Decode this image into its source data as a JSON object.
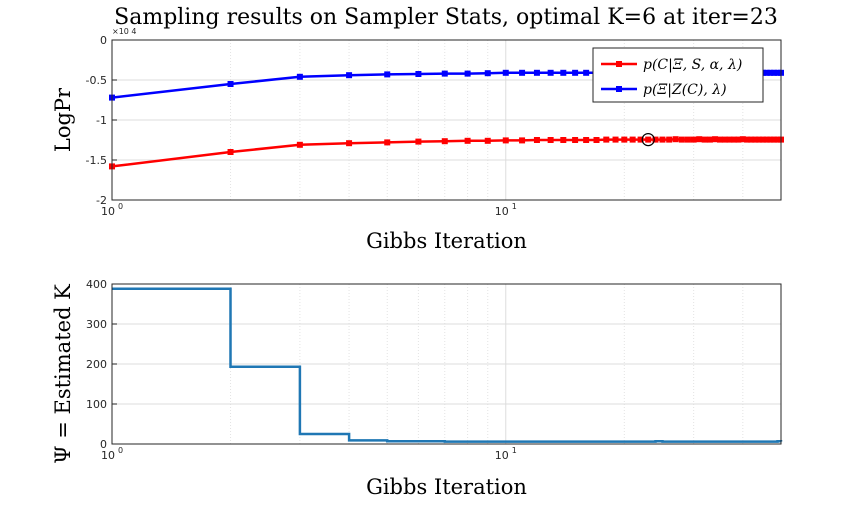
{
  "figure": {
    "title": "Sampling results on Sampler Stats, optimal K=6 at iter=23"
  },
  "chart_data": [
    {
      "type": "line",
      "xscale": "log",
      "xlabel": "Gibbs Iteration",
      "ylabel": "LogPr",
      "xlim": [
        1,
        50
      ],
      "ylim": [
        -2,
        0
      ],
      "y_multiplier_label": "×10",
      "y_multiplier_exp": "4",
      "yticks": [
        0,
        -0.5,
        -1,
        -1.5,
        -2
      ],
      "ytick_labels": [
        "0",
        "-0.5",
        "-1",
        "-1.5",
        "-2"
      ],
      "xtick_labels": [
        {
          "base": "10",
          "exp": "0"
        },
        {
          "base": "10",
          "exp": "1"
        }
      ],
      "grid": true,
      "legend_position": "top-right",
      "optimal_marker": {
        "iter": 23,
        "series_index": 0,
        "symbol": "circle"
      },
      "series": [
        {
          "name": "p(C|Ξ, S, α, λ)",
          "color": "#ff0000",
          "x": [
            1,
            2,
            3,
            4,
            5,
            6,
            7,
            8,
            9,
            10,
            11,
            12,
            13,
            14,
            15,
            16,
            17,
            18,
            19,
            20,
            21,
            22,
            23,
            24,
            25,
            26,
            27,
            28,
            29,
            30,
            31,
            32,
            33,
            34,
            35,
            36,
            37,
            38,
            39,
            40,
            41,
            42,
            43,
            44,
            45,
            46,
            47,
            48,
            49,
            50
          ],
          "values": [
            -1.58,
            -1.4,
            -1.31,
            -1.29,
            -1.28,
            -1.27,
            -1.265,
            -1.26,
            -1.26,
            -1.255,
            -1.255,
            -1.25,
            -1.25,
            -1.25,
            -1.25,
            -1.25,
            -1.25,
            -1.245,
            -1.245,
            -1.245,
            -1.245,
            -1.245,
            -1.245,
            -1.245,
            -1.245,
            -1.245,
            -1.24,
            -1.245,
            -1.245,
            -1.245,
            -1.24,
            -1.245,
            -1.245,
            -1.24,
            -1.245,
            -1.245,
            -1.245,
            -1.245,
            -1.245,
            -1.24,
            -1.245,
            -1.245,
            -1.245,
            -1.245,
            -1.245,
            -1.245,
            -1.245,
            -1.245,
            -1.245,
            -1.245
          ]
        },
        {
          "name": "p(Ξ|Z(C), λ)",
          "color": "#0000ff",
          "x": [
            1,
            2,
            3,
            4,
            5,
            6,
            7,
            8,
            9,
            10,
            11,
            12,
            13,
            14,
            15,
            16,
            17,
            18,
            19,
            20,
            21,
            22,
            23,
            24,
            25,
            26,
            27,
            28,
            29,
            30,
            31,
            32,
            33,
            34,
            35,
            36,
            37,
            38,
            39,
            40,
            41,
            42,
            43,
            44,
            45,
            46,
            47,
            48,
            49,
            50
          ],
          "values": [
            -0.72,
            -0.55,
            -0.46,
            -0.44,
            -0.43,
            -0.425,
            -0.42,
            -0.42,
            -0.415,
            -0.41,
            -0.41,
            -0.41,
            -0.41,
            -0.41,
            -0.41,
            -0.41,
            -0.41,
            -0.41,
            -0.41,
            -0.41,
            -0.41,
            -0.41,
            -0.41,
            -0.41,
            -0.41,
            -0.41,
            -0.41,
            -0.41,
            -0.41,
            -0.41,
            -0.41,
            -0.41,
            -0.41,
            -0.41,
            -0.41,
            -0.41,
            -0.41,
            -0.41,
            -0.41,
            -0.41,
            -0.41,
            -0.41,
            -0.41,
            -0.41,
            -0.41,
            -0.41,
            -0.41,
            -0.41,
            -0.41,
            -0.41
          ]
        }
      ]
    },
    {
      "type": "line",
      "step": true,
      "xscale": "log",
      "xlabel": "Gibbs Iteration",
      "ylabel": "Ψ = Estimated K",
      "xlim": [
        1,
        50
      ],
      "ylim": [
        0,
        400
      ],
      "yticks": [
        0,
        100,
        200,
        300,
        400
      ],
      "ytick_labels": [
        "0",
        "100",
        "200",
        "300",
        "400"
      ],
      "xtick_labels": [
        {
          "base": "10",
          "exp": "0"
        },
        {
          "base": "10",
          "exp": "1"
        }
      ],
      "grid": true,
      "series": [
        {
          "color": "#1f77b4",
          "x": [
            1,
            2,
            3,
            4,
            5,
            6,
            7,
            8,
            9,
            10,
            11,
            12,
            13,
            14,
            15,
            16,
            17,
            18,
            19,
            20,
            21,
            22,
            23,
            24,
            25,
            26,
            27,
            28,
            29,
            30,
            31,
            32,
            33,
            34,
            35,
            36,
            37,
            38,
            39,
            40,
            41,
            42,
            43,
            44,
            45,
            46,
            47,
            48,
            49,
            50
          ],
          "values": [
            388,
            193,
            25,
            9,
            7,
            7,
            6,
            6,
            6,
            6,
            6,
            6,
            6,
            6,
            6,
            6,
            6,
            6,
            6,
            6,
            6,
            6,
            6,
            7,
            6,
            6,
            6,
            6,
            6,
            6,
            6,
            6,
            6,
            6,
            6,
            6,
            6,
            6,
            6,
            6,
            6,
            6,
            6,
            6,
            6,
            6,
            6,
            6,
            7,
            6
          ]
        }
      ]
    }
  ]
}
